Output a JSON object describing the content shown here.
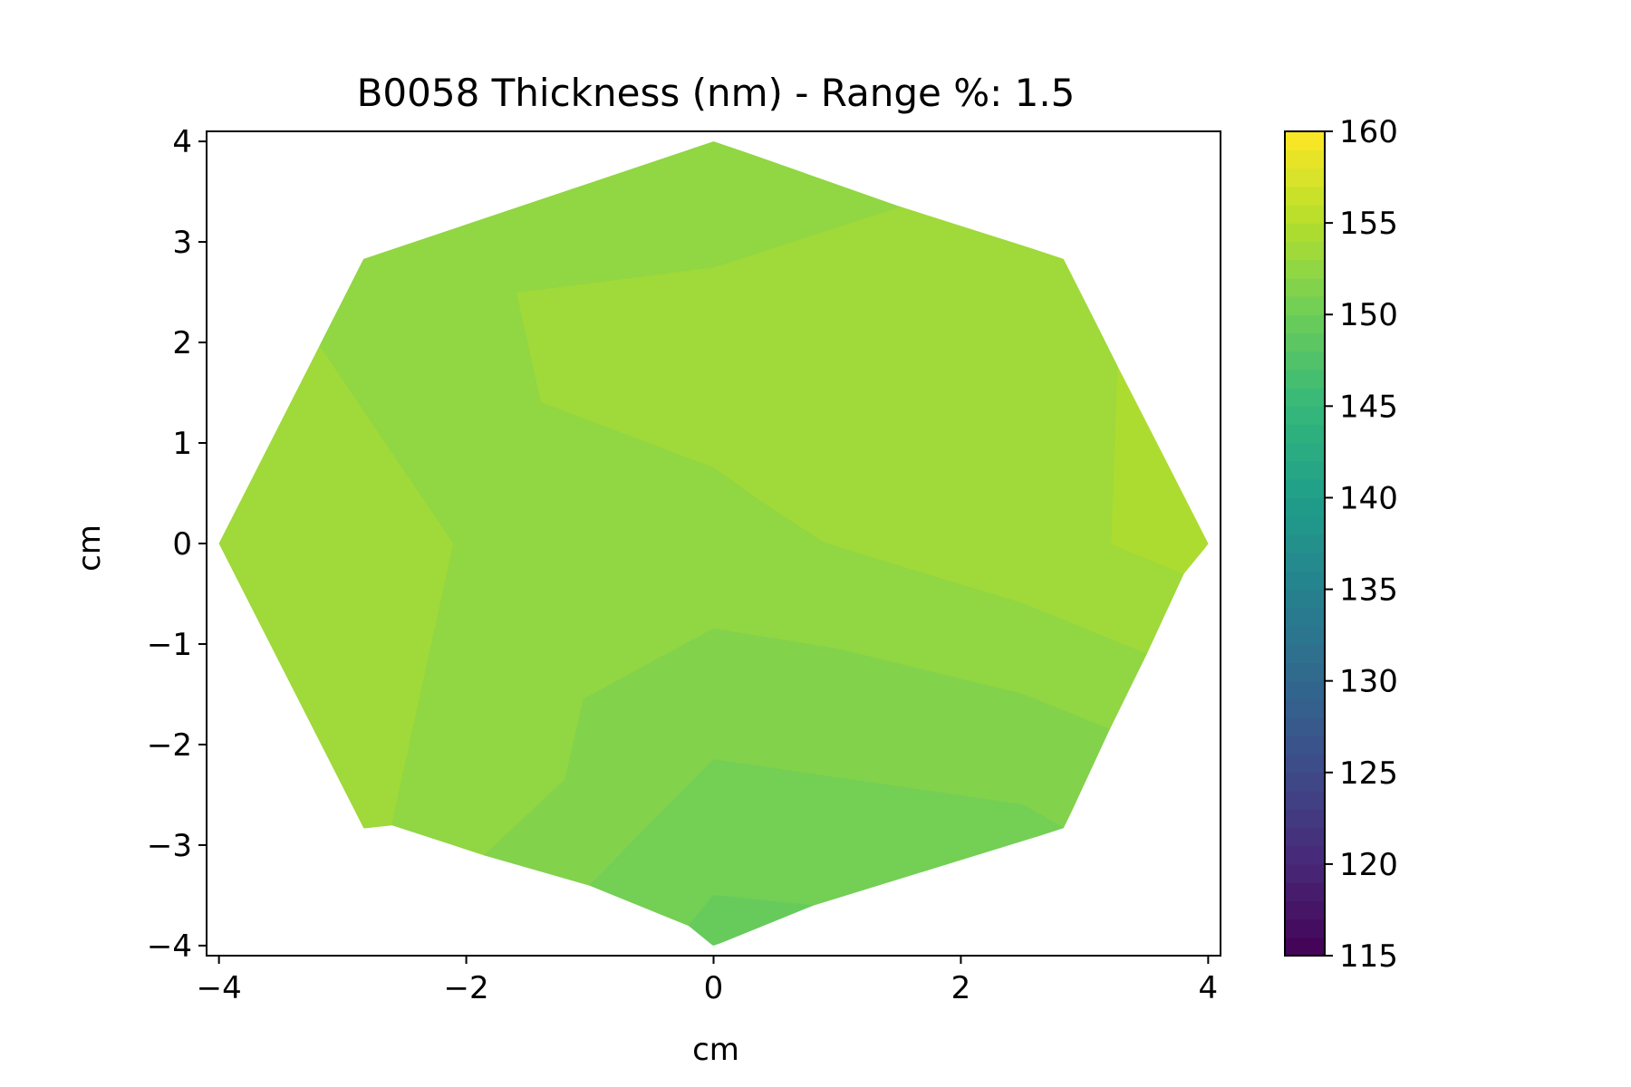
{
  "chart_data": {
    "type": "heatmap",
    "title": "B0058 Thickness (nm) - Range %: 1.5",
    "xlabel": "cm",
    "ylabel": "cm",
    "xlim": [
      -4.1,
      4.1
    ],
    "ylim": [
      -4.1,
      4.1
    ],
    "x_ticks": [
      {
        "value": -4,
        "label": "−4"
      },
      {
        "value": -2,
        "label": "−2"
      },
      {
        "value": 0,
        "label": "0"
      },
      {
        "value": 2,
        "label": "2"
      },
      {
        "value": 4,
        "label": "4"
      }
    ],
    "y_ticks": [
      {
        "value": 4,
        "label": "4"
      },
      {
        "value": 3,
        "label": "3"
      },
      {
        "value": 2,
        "label": "2"
      },
      {
        "value": 1,
        "label": "1"
      },
      {
        "value": 0,
        "label": "0"
      },
      {
        "value": -1,
        "label": "−1"
      },
      {
        "value": -2,
        "label": "−2"
      },
      {
        "value": -3,
        "label": "−3"
      },
      {
        "value": -4,
        "label": "−4"
      }
    ],
    "colormap": "viridis",
    "colorbar": {
      "min": 115,
      "max": 160,
      "ticks": [
        {
          "value": 160,
          "label": "160"
        },
        {
          "value": 155,
          "label": "155"
        },
        {
          "value": 150,
          "label": "150"
        },
        {
          "value": 145,
          "label": "145"
        },
        {
          "value": 140,
          "label": "140"
        },
        {
          "value": 135,
          "label": "135"
        },
        {
          "value": 130,
          "label": "130"
        },
        {
          "value": 125,
          "label": "125"
        },
        {
          "value": 120,
          "label": "120"
        }
      ],
      "bottom_tick": {
        "value": 115,
        "label": "115"
      }
    },
    "wafer_boundary": [
      [
        0,
        4
      ],
      [
        2.83,
        2.83
      ],
      [
        4,
        0
      ],
      [
        2.83,
        -2.83
      ],
      [
        0,
        -4
      ],
      [
        -2.83,
        -2.83
      ],
      [
        -4,
        0
      ],
      [
        -2.83,
        2.83
      ]
    ],
    "regions": [
      {
        "value": 153.5,
        "polygon": [
          [
            -1.6,
            2.5
          ],
          [
            0,
            2.75
          ],
          [
            1.5,
            3.35
          ],
          [
            2.83,
            2.83
          ],
          [
            3.27,
            1.75
          ],
          [
            3.22,
            0
          ],
          [
            3.8,
            -0.3
          ],
          [
            3.5,
            -1.1
          ],
          [
            2.5,
            -0.6
          ],
          [
            0.9,
            0
          ],
          [
            0.4,
            0.4
          ],
          [
            0,
            0.75
          ],
          [
            -1.4,
            1.4
          ]
        ]
      },
      {
        "value": 154.5,
        "polygon": [
          [
            3.27,
            1.75
          ],
          [
            4,
            0
          ],
          [
            3.8,
            -0.3
          ],
          [
            3.22,
            0
          ]
        ]
      },
      {
        "value": 153.5,
        "polygon": [
          [
            -2.83,
            2.83
          ],
          [
            -3.2,
            2.0
          ],
          [
            -4,
            0
          ],
          [
            -2.83,
            -2.83
          ],
          [
            -2.6,
            -2.8
          ],
          [
            -2.1,
            0
          ]
        ]
      },
      {
        "value": 152.5,
        "polygon": [
          [
            -3.2,
            2.0
          ],
          [
            -2.1,
            0
          ],
          [
            -2.6,
            -2.8
          ],
          [
            -1.85,
            -3.1
          ],
          [
            -1.2,
            -2.35
          ],
          [
            -1.05,
            -1.55
          ],
          [
            0,
            -0.85
          ],
          [
            1.0,
            -1.05
          ],
          [
            2.5,
            -1.5
          ],
          [
            3.2,
            -1.85
          ],
          [
            3.5,
            -1.1
          ],
          [
            2.5,
            -0.6
          ],
          [
            0.9,
            0
          ],
          [
            0.4,
            0.4
          ],
          [
            0,
            0.75
          ],
          [
            -1.4,
            1.4
          ],
          [
            -1.6,
            2.5
          ],
          [
            0,
            2.75
          ],
          [
            1.5,
            3.35
          ],
          [
            0,
            4
          ],
          [
            -2.83,
            2.83
          ]
        ]
      },
      {
        "value": 151.5,
        "polygon": [
          [
            -1.85,
            -3.1
          ],
          [
            -1.2,
            -2.35
          ],
          [
            -1.05,
            -1.55
          ],
          [
            0,
            -0.85
          ],
          [
            1.0,
            -1.05
          ],
          [
            2.5,
            -1.5
          ],
          [
            3.2,
            -1.85
          ],
          [
            2.83,
            -2.83
          ],
          [
            2.5,
            -2.6
          ],
          [
            0,
            -2.15
          ],
          [
            -1.0,
            -3.4
          ]
        ]
      },
      {
        "value": 150.5,
        "polygon": [
          [
            -1.0,
            -3.4
          ],
          [
            0,
            -2.15
          ],
          [
            2.5,
            -2.6
          ],
          [
            2.83,
            -2.83
          ],
          [
            0.8,
            -3.6
          ],
          [
            0,
            -3.5
          ],
          [
            -0.2,
            -3.8
          ]
        ]
      },
      {
        "value": 149.5,
        "polygon": [
          [
            -0.2,
            -3.8
          ],
          [
            0,
            -3.5
          ],
          [
            0.8,
            -3.6
          ],
          [
            0,
            -4
          ]
        ]
      }
    ]
  }
}
